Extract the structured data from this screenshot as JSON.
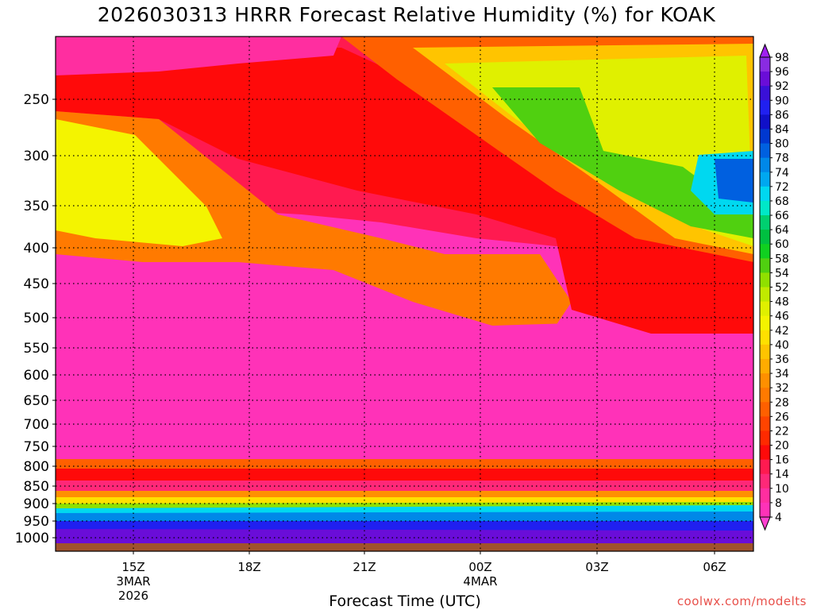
{
  "title": "2026030313 HRRR Forecast Relative Humidity (%) for KOAK",
  "credit": "coolwx.com/modelts",
  "chart_data": {
    "type": "heatmap",
    "title": "2026030313 HRRR Forecast Relative Humidity (%) for KOAK",
    "xlabel": "Forecast Time (UTC)",
    "ylabel": "",
    "y_scale": "pressure (log-like, inverted)",
    "y_range_hPa": [
      1025,
      200
    ],
    "x_range_hours_utc": [
      13,
      31
    ],
    "y_ticks": [
      "250",
      "300",
      "350",
      "400",
      "450",
      "500",
      "550",
      "600",
      "650",
      "700",
      "750",
      "800",
      "850",
      "900",
      "950",
      "1000"
    ],
    "x_ticks": [
      {
        "label": "15Z",
        "sub": [
          "3MAR",
          "2026"
        ]
      },
      {
        "label": "18Z",
        "sub": []
      },
      {
        "label": "21Z",
        "sub": []
      },
      {
        "label": "00Z",
        "sub": [
          "4MAR"
        ]
      },
      {
        "label": "03Z",
        "sub": []
      },
      {
        "label": "06Z",
        "sub": []
      }
    ],
    "grid": "dotted",
    "colorbar": {
      "labels": [
        "98",
        "96",
        "92",
        "90",
        "86",
        "84",
        "80",
        "78",
        "74",
        "72",
        "68",
        "66",
        "64",
        "60",
        "58",
        "54",
        "52",
        "48",
        "46",
        "42",
        "40",
        "36",
        "34",
        "32",
        "28",
        "26",
        "22",
        "20",
        "16",
        "14",
        "10",
        "8",
        "4"
      ],
      "colors": [
        "#8a2be2",
        "#6a0dd8",
        "#3a10d8",
        "#2020f0",
        "#1010c8",
        "#0038d0",
        "#0060e0",
        "#0088e8",
        "#00a8f0",
        "#00d8f0",
        "#00e8c8",
        "#00d070",
        "#00c040",
        "#10d020",
        "#50d010",
        "#90e000",
        "#c0ea00",
        "#e0f000",
        "#f4f400",
        "#ffe000",
        "#ffc400",
        "#ffac00",
        "#ff9000",
        "#ff7a00",
        "#ff6000",
        "#ff4400",
        "#ff2a00",
        "#ff0a0a",
        "#ff1a50",
        "#ff2878",
        "#ff2ea0",
        "#ff32b8"
      ],
      "extend": "both"
    },
    "fields_hPa_vs_hour": [
      {
        "rh_range": "4-10",
        "region": "upper top-left 210-230 hPa and 500-800 hPa most hours"
      },
      {
        "rh_range": "20-32",
        "region": "bands near 230-300 hPa, 400-500 hPa, 800-870 hPa"
      },
      {
        "rh_range": "36-48",
        "region": "300-400 hPa early (13-17Z), top after 00Z"
      },
      {
        "rh_range": "54-68",
        "region": "250-300 hPa around 01-04Z"
      },
      {
        "rh_range": "72-80",
        "region": "300-350 hPa near 06-07Z"
      },
      {
        "rh_range": "86-98",
        "region": "930-1025 hPa all hours"
      }
    ]
  }
}
